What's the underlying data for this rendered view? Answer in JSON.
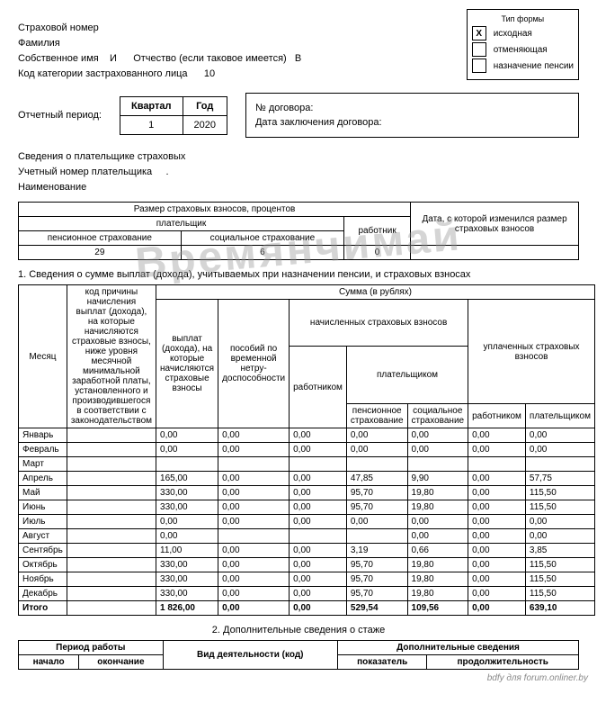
{
  "watermark": "Времянчимай",
  "form_type": {
    "title": "Тип формы",
    "options": [
      {
        "label": "исходная",
        "checked": "Х"
      },
      {
        "label": "отменяющая",
        "checked": ""
      },
      {
        "label": "назначение пенсии",
        "checked": ""
      }
    ]
  },
  "header": {
    "insurance_num": "Страховой номер",
    "surname": "Фамилия",
    "own_name_label": "Собственное имя",
    "own_name_val": "И",
    "patronymic_label": "Отчество (если таковое имеется)",
    "patronymic_val": "В",
    "code_label": "Код категории застрахованного лица",
    "code_val": "10"
  },
  "period": {
    "label": "Отчетный период:",
    "quarter_h": "Квартал",
    "year_h": "Год",
    "quarter": "1",
    "year": "2020",
    "contract_num": "№ договора:",
    "contract_date": "Дата заключения договора:"
  },
  "payer": {
    "info": "Сведения о плательщике страховых",
    "acc": "Учетный номер плательщика",
    "name": "Наименование"
  },
  "rates": {
    "h1": "Размер страховых взносов, процентов",
    "h2": "Дата, с которой изменился размер страховых взносов",
    "payer_h": "плательщик",
    "worker_h": "работник",
    "pension_h": "пенсионное страхование",
    "social_h": "социальное страхование",
    "pension_v": "29",
    "social_v": "6",
    "worker_v": "0",
    "date_v": ""
  },
  "section1_title": "1. Сведения о сумме выплат (дохода), учитываемых при назначении пенсии, и страховых взносах",
  "table": {
    "month_h": "Месяц",
    "reason_h": "код причины начисления выплат (дохода), на которые начисляются страховые взносы, ниже уровня месячной минимальной заработной платы, установленного и производившегося в соответствии с законодательством",
    "sum_h": "Сумма (в рублях)",
    "payments_h": "выплат (дохода), на которые начисляются страховые взносы",
    "benefits_h": "пособий по временной нетру-доспособности",
    "accrued_h": "начисленных страховых взносов",
    "paid_h": "уплаченных страховых взносов",
    "worker_h": "работником",
    "payer_h": "плательщиком",
    "pension_h": "пенсионное страхование",
    "social_h": "социальное страхование",
    "worker2_h": "работником",
    "payer2_h": "плательщиком",
    "rows": [
      {
        "m": "Январь",
        "v": [
          "0,00",
          "0,00",
          "0,00",
          "0,00",
          "0,00",
          "0,00",
          "0,00"
        ]
      },
      {
        "m": "Февраль",
        "v": [
          "0,00",
          "0,00",
          "0,00",
          "0,00",
          "0,00",
          "0,00",
          "0,00"
        ]
      },
      {
        "m": "Март",
        "v": [
          "",
          "",
          "",
          "",
          "",
          "",
          ""
        ]
      },
      {
        "m": "Апрель",
        "v": [
          "165,00",
          "0,00",
          "0,00",
          "47,85",
          "9,90",
          "0,00",
          "57,75"
        ]
      },
      {
        "m": "Май",
        "v": [
          "330,00",
          "0,00",
          "0,00",
          "95,70",
          "19,80",
          "0,00",
          "115,50"
        ]
      },
      {
        "m": "Июнь",
        "v": [
          "330,00",
          "0,00",
          "0,00",
          "95,70",
          "19,80",
          "0,00",
          "115,50"
        ]
      },
      {
        "m": "Июль",
        "v": [
          "0,00",
          "0,00",
          "0,00",
          "0,00",
          "0,00",
          "0,00",
          "0,00"
        ]
      },
      {
        "m": "Август",
        "v": [
          "0,00",
          "",
          "",
          "",
          "0,00",
          "0,00",
          "0,00"
        ]
      },
      {
        "m": "Сентябрь",
        "v": [
          "11,00",
          "0,00",
          "0,00",
          "3,19",
          "0,66",
          "0,00",
          "3,85"
        ]
      },
      {
        "m": "Октябрь",
        "v": [
          "330,00",
          "0,00",
          "0,00",
          "95,70",
          "19,80",
          "0,00",
          "115,50"
        ]
      },
      {
        "m": "Ноябрь",
        "v": [
          "330,00",
          "0,00",
          "0,00",
          "95,70",
          "19,80",
          "0,00",
          "115,50"
        ]
      },
      {
        "m": "Декабрь",
        "v": [
          "330,00",
          "0,00",
          "0,00",
          "95,70",
          "19,80",
          "0,00",
          "115,50"
        ]
      },
      {
        "m": "Итого",
        "v": [
          "1 826,00",
          "0,00",
          "0,00",
          "529,54",
          "109,56",
          "0,00",
          "639,10"
        ]
      }
    ]
  },
  "section2_title": "2. Дополнительные сведения о стаже",
  "table2": {
    "period_h": "Период работы",
    "activity_h": "Вид деятельности (код)",
    "additional_h": "Дополнительные сведения",
    "start_h": "начало",
    "end_h": "окончание",
    "indicator_h": "показатель",
    "duration_h": "продолжительность"
  },
  "footer_text": "bdfy для forum.onliner.by"
}
